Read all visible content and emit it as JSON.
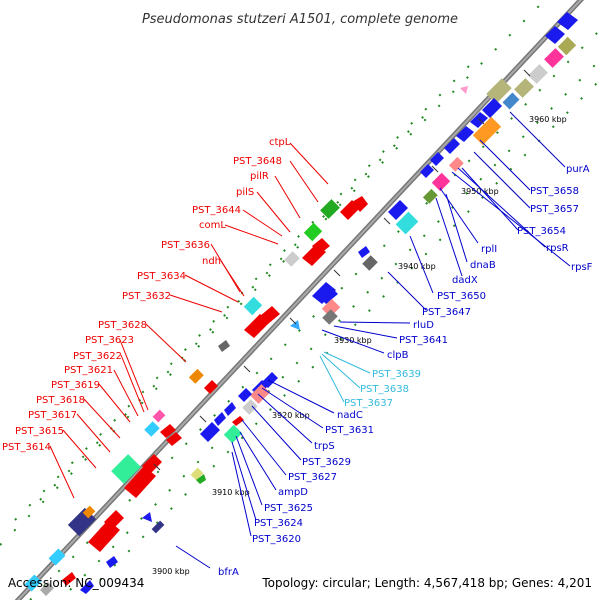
{
  "title": "Pseudomonas stutzeri A1501, complete genome",
  "footer": {
    "accession": "Accession: NC_009434",
    "summary": "Topology: circular; Length: 4,567,418 bp; Genes: 4,201"
  },
  "colors": {
    "forward_label": "#ee0000",
    "reverse_label": "#0000cc",
    "rna_label": "#33bbdd",
    "backbone": "#888888",
    "tick_mark": "#228822"
  },
  "ticks": [
    "3900 kbp",
    "3910 kbp",
    "3920 kbp",
    "3930 kbp",
    "3940 kbp",
    "3950 kbp",
    "3960 kbp"
  ],
  "forward_labels": [
    "ctpL",
    "PST_3648",
    "pilR",
    "pilS",
    "PST_3644",
    "comL",
    "PST_3636",
    "ndh",
    "PST_3634",
    "PST_3632",
    "PST_3628",
    "PST_3623",
    "PST_3622",
    "PST_3621",
    "PST_3619",
    "PST_3618",
    "PST_3617",
    "PST_3615",
    "PST_3614"
  ],
  "reverse_labels": [
    "purA",
    "PST_3658",
    "PST_3657",
    "PST_3654",
    "rpsR",
    "rpsF",
    "rplI",
    "dnaB",
    "dadX",
    "PST_3650",
    "PST_3647",
    "rluD",
    "PST_3641",
    "clpB",
    "PST_3639",
    "PST_3638",
    "PST_3637",
    "nadC",
    "PST_3631",
    "trpS",
    "PST_3629",
    "PST_3627",
    "ampD",
    "PST_3625",
    "PST_3624",
    "PST_3620",
    "bfrA"
  ]
}
